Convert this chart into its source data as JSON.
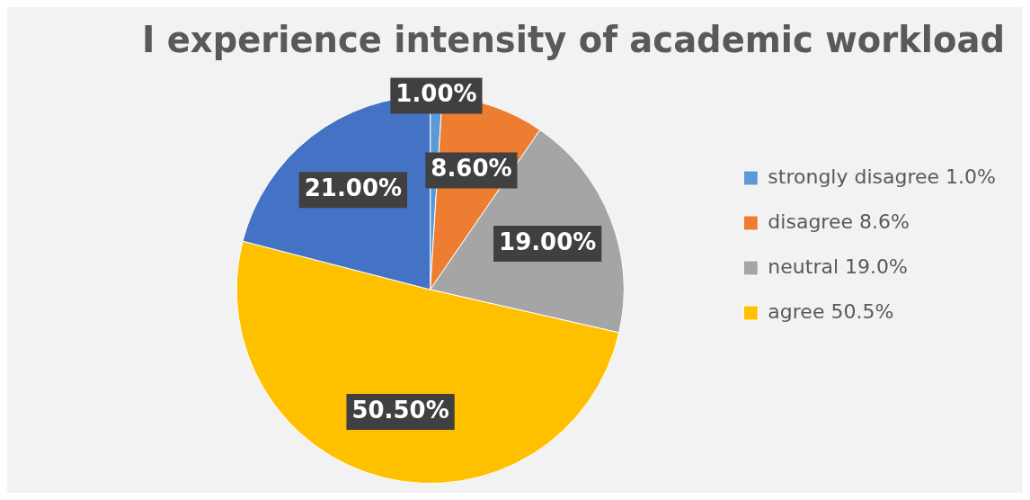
{
  "chart_data": {
    "type": "pie",
    "title": "I experience intensity of academic workload",
    "categories": [
      "strongly disagree 1.0%",
      "disagree 8.6%",
      "neutral 19.0%",
      "agree 50.5%",
      null
    ],
    "values": [
      1.0,
      8.6,
      19.0,
      50.5,
      21.0
    ],
    "colors": [
      "#5b9bd5",
      "#ed7d31",
      "#a5a5a5",
      "#ffc000",
      "#4472c4"
    ],
    "value_labels": [
      "1.00%",
      "8.60%",
      "19.00%",
      "50.50%",
      "21.00%"
    ],
    "legend": "right"
  }
}
